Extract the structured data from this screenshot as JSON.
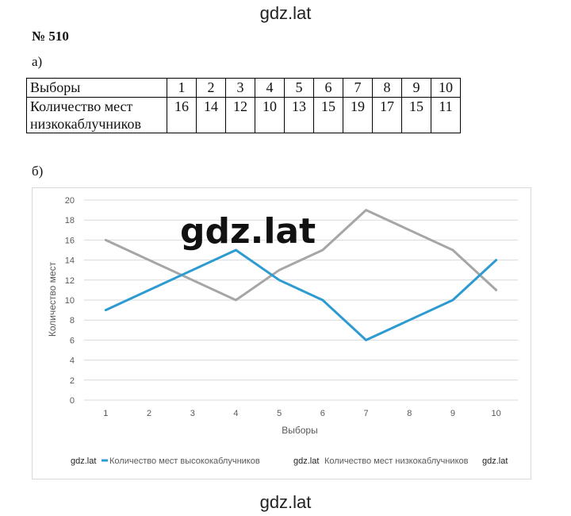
{
  "watermark": "gdz.lat",
  "problem_number": "№ 510",
  "part_a_label": "а)",
  "part_b_label": "б)",
  "table": {
    "header_label": "Выборы",
    "row_label_line1": "Количество мест",
    "row_label_line2": "низкокаблучников",
    "columns": [
      "1",
      "2",
      "3",
      "4",
      "5",
      "6",
      "7",
      "8",
      "9",
      "10"
    ],
    "values": [
      "16",
      "14",
      "12",
      "10",
      "13",
      "15",
      "19",
      "17",
      "15",
      "11"
    ]
  },
  "chart_data": {
    "type": "line",
    "title": "",
    "xlabel": "Выборы",
    "ylabel": "Количество мест",
    "x": [
      "1",
      "2",
      "3",
      "4",
      "5",
      "6",
      "7",
      "8",
      "9",
      "10"
    ],
    "ylim": [
      0,
      20
    ],
    "yticks": [
      "0",
      "2",
      "4",
      "6",
      "8",
      "10",
      "12",
      "14",
      "16",
      "18",
      "20"
    ],
    "grid": true,
    "legend": "bottom",
    "series": [
      {
        "name": "Количество мест высококаблучников",
        "color": "#2e9bd0",
        "values": [
          9,
          11,
          13,
          15,
          12,
          10,
          6,
          8,
          10,
          14
        ]
      },
      {
        "name": "Количество мест низкокаблучников",
        "color": "#a6a6a6",
        "values": [
          16,
          14,
          12,
          10,
          13,
          15,
          19,
          17,
          15,
          11
        ]
      }
    ]
  }
}
